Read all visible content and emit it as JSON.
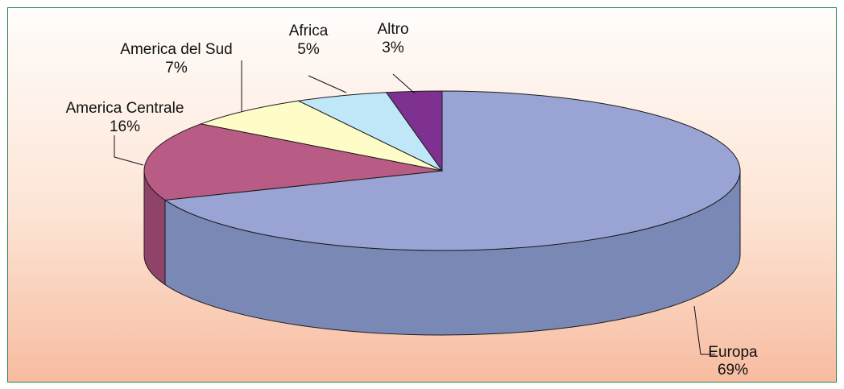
{
  "chart_data": {
    "type": "pie",
    "title": "",
    "categories": [
      "Europa",
      "America Centrale",
      "America del Sud",
      "Africa",
      "Altro"
    ],
    "values": [
      69,
      16,
      7,
      5,
      3
    ],
    "labels": [
      {
        "name": "Europa",
        "pct": "69%"
      },
      {
        "name": "America Centrale",
        "pct": "16%"
      },
      {
        "name": "America del Sud",
        "pct": "7%"
      },
      {
        "name": "Africa",
        "pct": "5%"
      },
      {
        "name": "Altro",
        "pct": "3%"
      }
    ],
    "colors": {
      "top": [
        "#99a4d4",
        "#b85c86",
        "#fefcc7",
        "#bfe7f7",
        "#7f3192"
      ],
      "side": [
        "#7988b5",
        "#8f4368",
        "#d9d7a0",
        "#9ac5d6",
        "#5c2370"
      ]
    },
    "legend": "none",
    "style": "3d"
  }
}
